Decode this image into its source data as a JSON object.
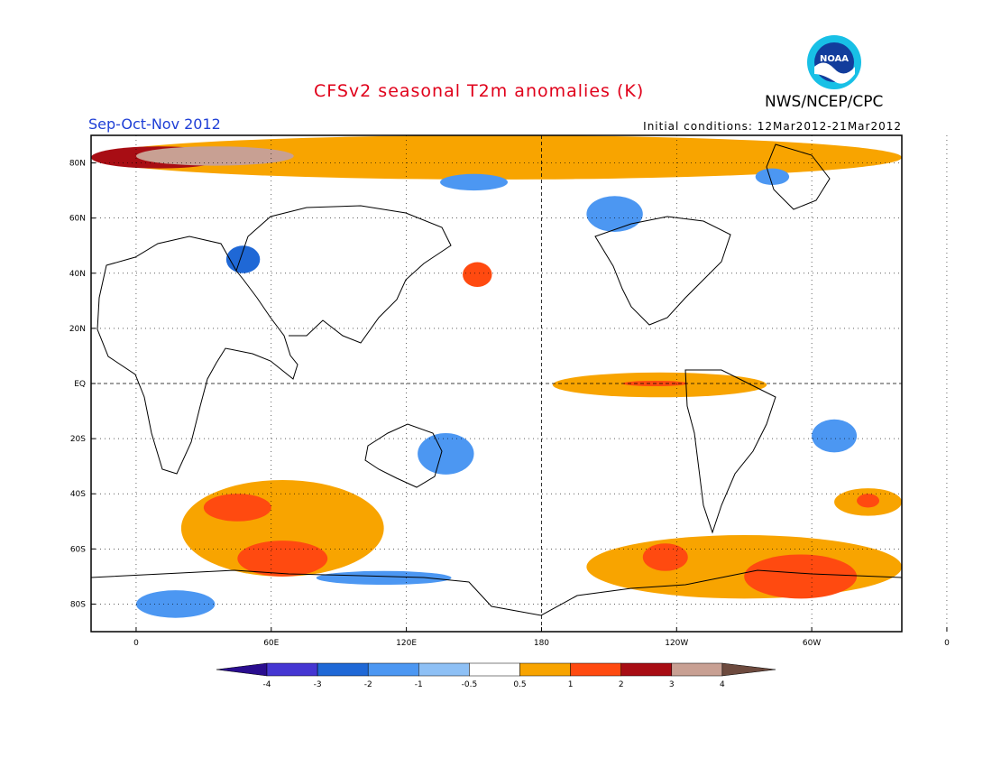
{
  "title": "CFSv2 seasonal T2m anomalies (K)",
  "organization": "NWS/NCEP/CPC",
  "logo_text": "NOAA",
  "season": "Sep-Oct-Nov 2012",
  "initial_conditions": "Initial conditions: 12Mar2012-21Mar2012",
  "map": {
    "projection": "cylindrical equidistant",
    "lon_range": [
      -20,
      340
    ],
    "lat_range": [
      -90,
      90
    ],
    "lat_labels": [
      {
        "lat": 80,
        "label": "80N"
      },
      {
        "lat": 60,
        "label": "60N"
      },
      {
        "lat": 40,
        "label": "40N"
      },
      {
        "lat": 20,
        "label": "20N"
      },
      {
        "lat": 0,
        "label": "EQ"
      },
      {
        "lat": -20,
        "label": "20S"
      },
      {
        "lat": -40,
        "label": "40S"
      },
      {
        "lat": -60,
        "label": "60S"
      },
      {
        "lat": -80,
        "label": "80S"
      }
    ],
    "lon_labels": [
      {
        "lon": 0,
        "label": "0"
      },
      {
        "lon": 60,
        "label": "60E"
      },
      {
        "lon": 120,
        "label": "120E"
      },
      {
        "lon": 180,
        "label": "180"
      },
      {
        "lon": 240,
        "label": "120W"
      },
      {
        "lon": 300,
        "label": "60W"
      },
      {
        "lon": 360,
        "label": "0"
      }
    ],
    "gridlines": "dotted",
    "reference_lines": [
      "equator",
      "dateline"
    ]
  },
  "colorbar": {
    "boundaries": [
      "-4",
      "-3",
      "-2",
      "-1",
      "-0.5",
      "0.5",
      "1",
      "2",
      "3",
      "4"
    ],
    "colors": [
      "#2a0d8f",
      "#4536d2",
      "#1f68d6",
      "#4c97f2",
      "#8ec0f5",
      "#ffffff",
      "#f8a400",
      "#ff4a10",
      "#a80d14",
      "#c8a093",
      "#6d4a3e"
    ]
  },
  "anomaly_regions": [
    {
      "name": "arctic-warm-band",
      "lon": [
        -20,
        340
      ],
      "lat": [
        74,
        90
      ],
      "level": 1
    },
    {
      "name": "greenland-sea-warm",
      "lon": [
        -20,
        40
      ],
      "lat": [
        78,
        86
      ],
      "level": 3
    },
    {
      "name": "barents-kara-warm-core",
      "lon": [
        0,
        70
      ],
      "lat": [
        79,
        86
      ],
      "level": 4
    },
    {
      "name": "east-siberian-cool",
      "lon": [
        135,
        165
      ],
      "lat": [
        70,
        76
      ],
      "level": -1
    },
    {
      "name": "alaska-cool",
      "lon": [
        200,
        225
      ],
      "lat": [
        55,
        68
      ],
      "level": -1
    },
    {
      "name": "canadian-archipelago-cool",
      "lon": [
        275,
        290
      ],
      "lat": [
        72,
        78
      ],
      "level": -1
    },
    {
      "name": "caspian-cool",
      "lon": [
        40,
        55
      ],
      "lat": [
        40,
        50
      ],
      "level": -2
    },
    {
      "name": "japan-warm",
      "lon": [
        145,
        158
      ],
      "lat": [
        35,
        44
      ],
      "level": 2
    },
    {
      "name": "enso-warm-tongue",
      "lon": [
        185,
        280
      ],
      "lat": [
        -5,
        4
      ],
      "level": 1
    },
    {
      "name": "enso-warm-core",
      "lon": [
        216,
        245
      ],
      "lat": [
        -1,
        1
      ],
      "level": 2
    },
    {
      "name": "australia-cool",
      "lon": [
        125,
        150
      ],
      "lat": [
        -33,
        -18
      ],
      "level": -1
    },
    {
      "name": "brazil-cool",
      "lon": [
        300,
        320
      ],
      "lat": [
        -25,
        -13
      ],
      "level": -1
    },
    {
      "name": "south-indian-ocean-warm",
      "lon": [
        20,
        110
      ],
      "lat": [
        -70,
        -35
      ],
      "level": 1
    },
    {
      "name": "south-indian-ocean-warm-core-1",
      "lon": [
        30,
        60
      ],
      "lat": [
        -50,
        -40
      ],
      "level": 2
    },
    {
      "name": "south-indian-ocean-warm-core-2",
      "lon": [
        45,
        85
      ],
      "lat": [
        -70,
        -57
      ],
      "level": 2
    },
    {
      "name": "south-pacific-warm",
      "lon": [
        200,
        340
      ],
      "lat": [
        -78,
        -55
      ],
      "level": 1
    },
    {
      "name": "amundsen-sea-warm-core",
      "lon": [
        225,
        245
      ],
      "lat": [
        -68,
        -58
      ],
      "level": 2
    },
    {
      "name": "weddell-warm-core",
      "lon": [
        270,
        320
      ],
      "lat": [
        -78,
        -62
      ],
      "level": 2
    },
    {
      "name": "southern-ocean-cool",
      "lon": [
        80,
        140
      ],
      "lat": [
        -73,
        -68
      ],
      "level": -1
    },
    {
      "name": "antarctica-cool",
      "lon": [
        0,
        35
      ],
      "lat": [
        -85,
        -75
      ],
      "level": -1
    },
    {
      "name": "south-atlantic-warm",
      "lon": [
        310,
        340
      ],
      "lat": [
        -48,
        -38
      ],
      "level": 1
    },
    {
      "name": "south-atlantic-warm-core",
      "lon": [
        320,
        330
      ],
      "lat": [
        -45,
        -40
      ],
      "level": 2
    }
  ]
}
